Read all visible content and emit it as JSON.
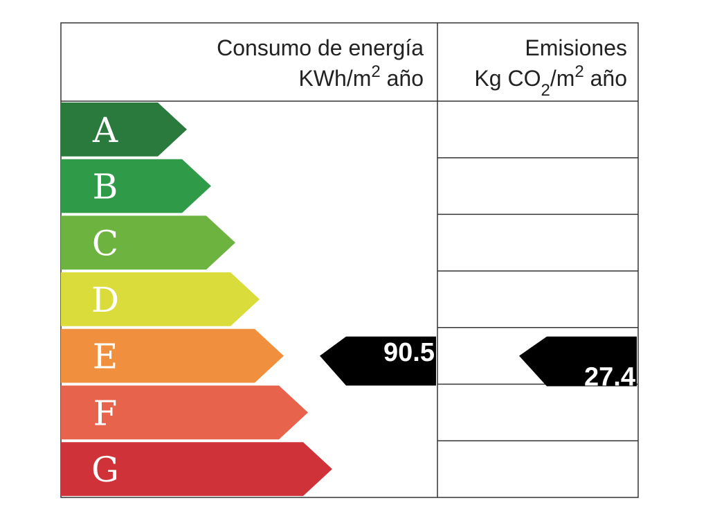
{
  "header": {
    "consumo": {
      "title": "Consumo de energía",
      "unit": [
        "KWh/m",
        "2",
        " año"
      ]
    },
    "emisiones": {
      "title": "Emisiones",
      "unit": [
        "Kg CO",
        "2",
        "/m",
        "2",
        " año"
      ]
    }
  },
  "rows": [
    {
      "letter": "A",
      "color": "#2a7a3e"
    },
    {
      "letter": "B",
      "color": "#2f9a47"
    },
    {
      "letter": "C",
      "color": "#6cb33f"
    },
    {
      "letter": "D",
      "color": "#d9dc3a"
    },
    {
      "letter": "E",
      "color": "#f0903f",
      "consumo": 90.5,
      "emisiones": 27.4
    },
    {
      "letter": "F",
      "color": "#e8634b"
    },
    {
      "letter": "G",
      "color": "#cf3339"
    }
  ]
}
